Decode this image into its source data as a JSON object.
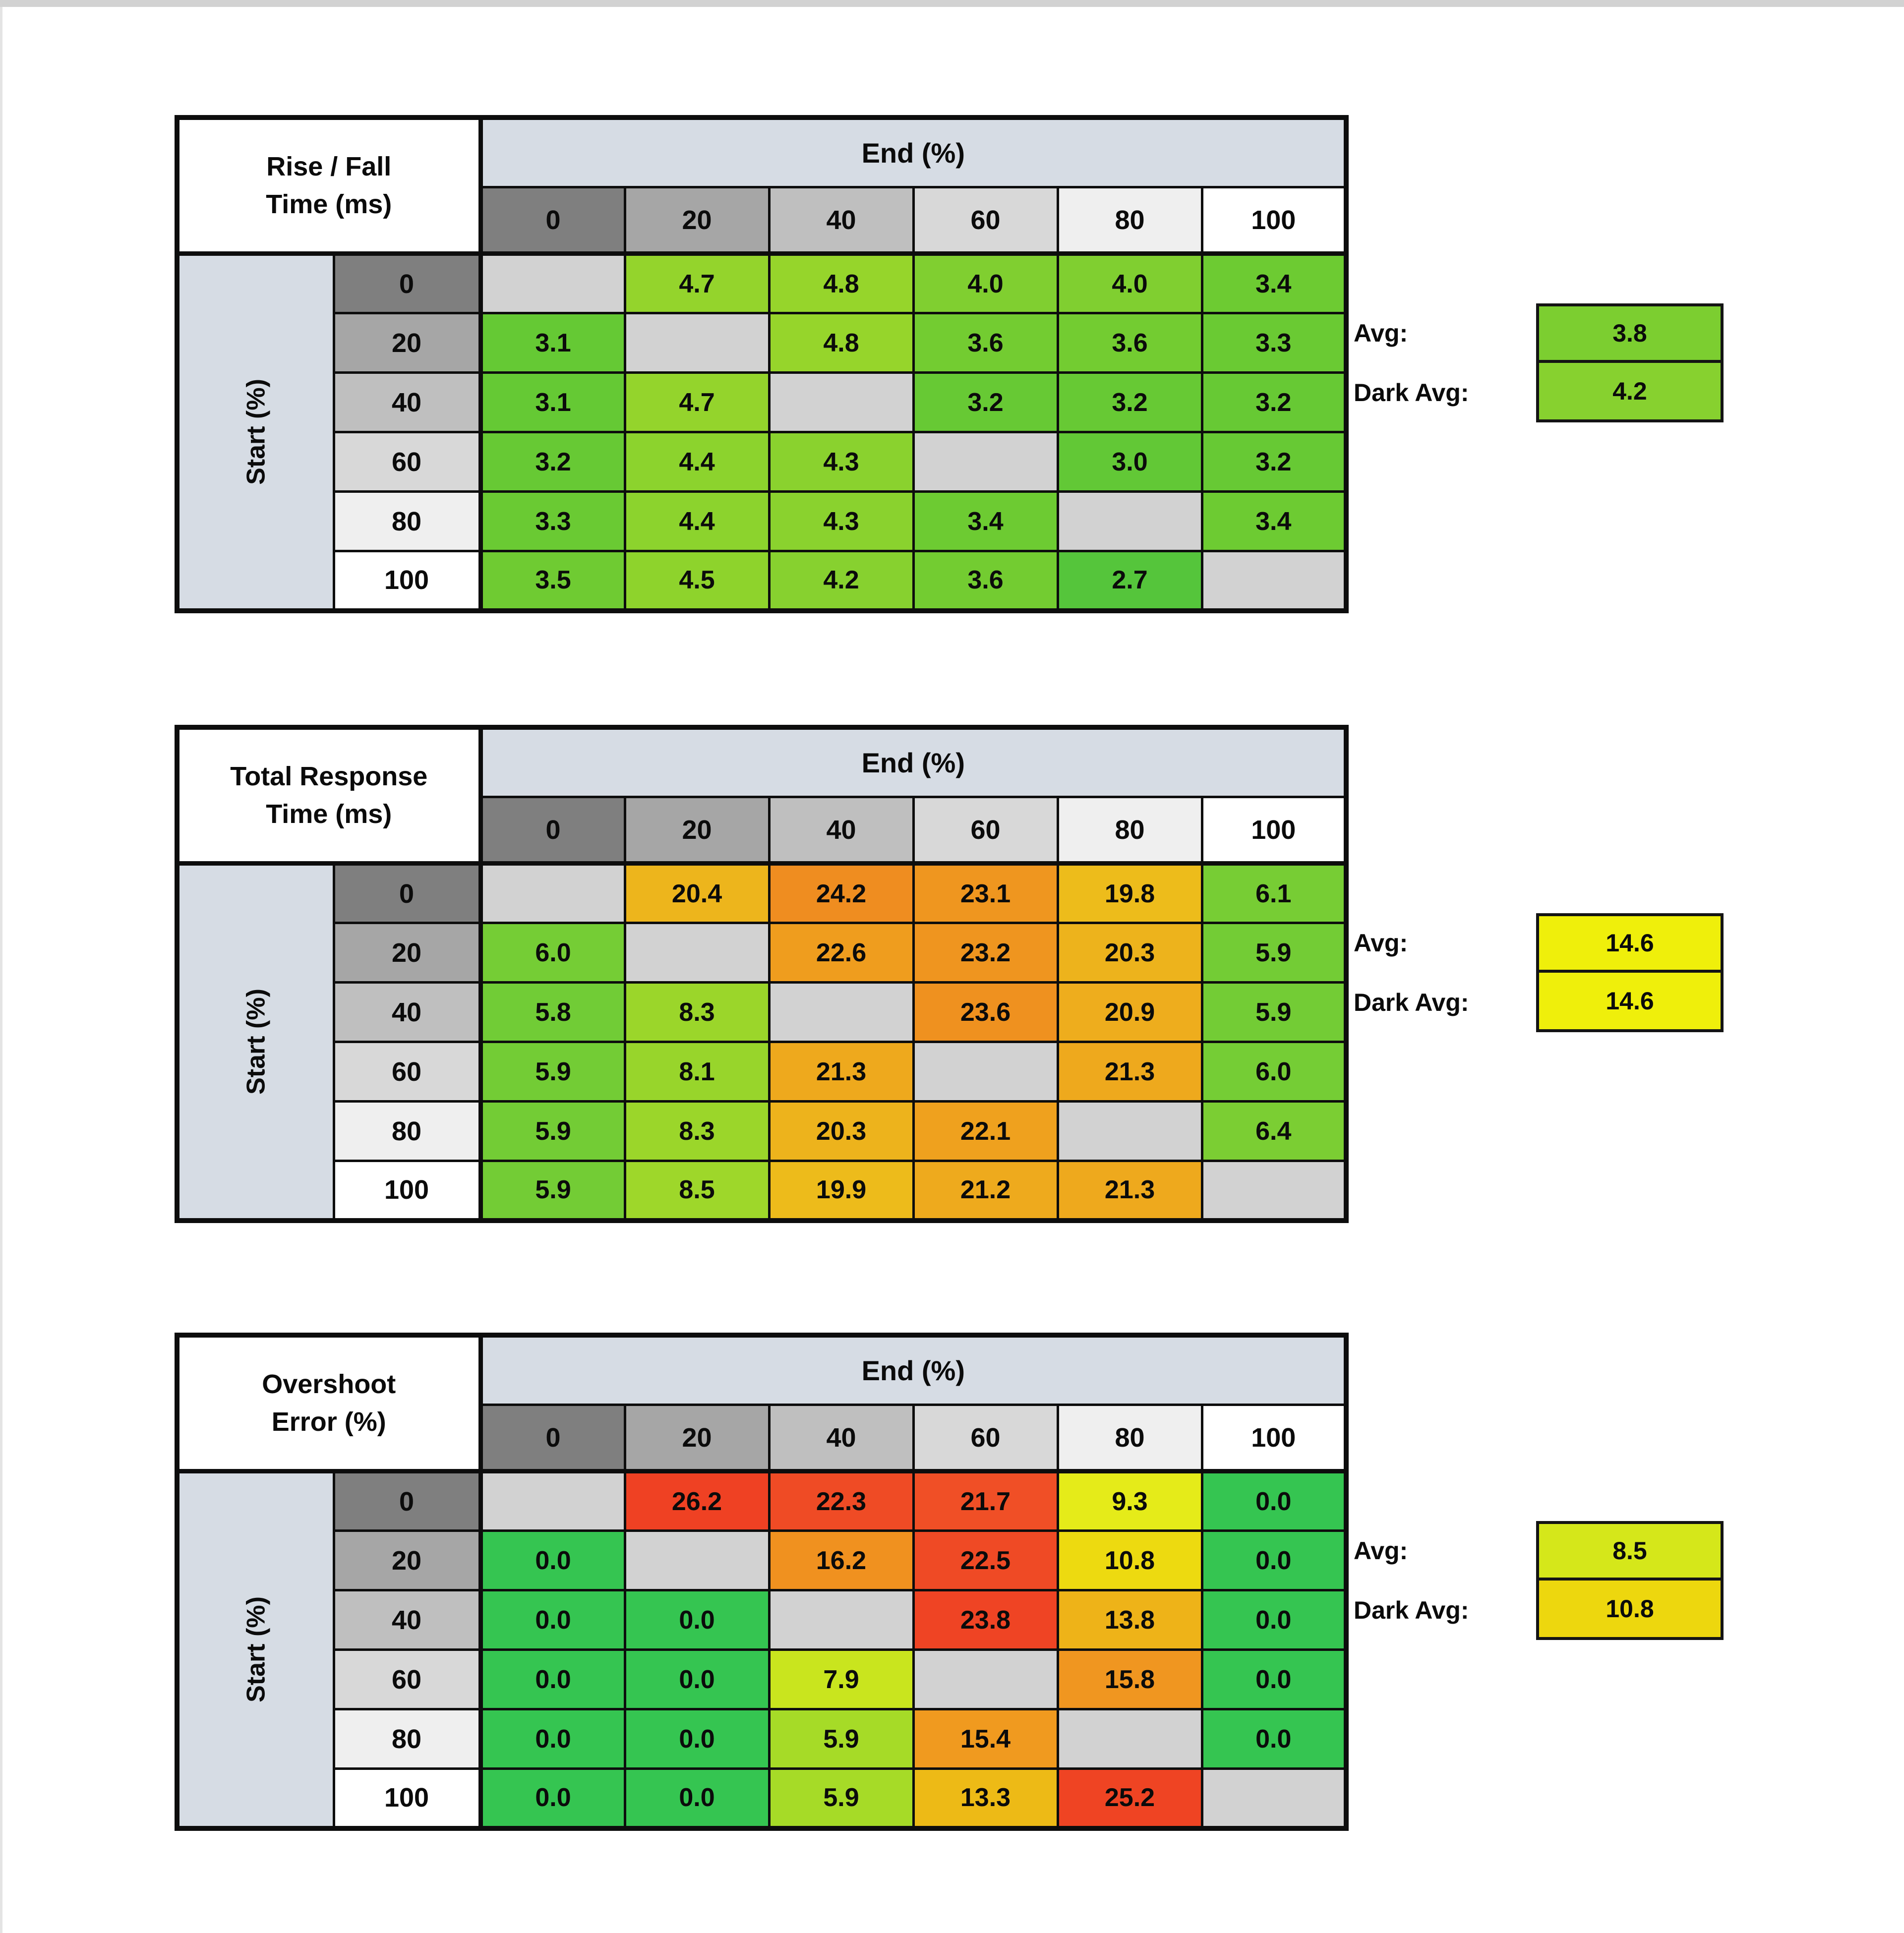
{
  "page": {
    "background": "#FFFFFF",
    "top_edge_color": "#D2D2D2",
    "left_edge_color": "#E4E4E4",
    "border_color": "#0D0D0D"
  },
  "shared": {
    "end_header": "End (%)",
    "start_label": "Start (%)",
    "col_headers": [
      "0",
      "20",
      "40",
      "60",
      "80",
      "100"
    ],
    "row_headers": [
      "0",
      "20",
      "40",
      "60",
      "80",
      "100"
    ],
    "header_grays": [
      "#7F7F7F",
      "#A6A6A6",
      "#BFBFBF",
      "#D8D8D8",
      "#EFEFEF",
      "#FFFFFF"
    ],
    "header_blue": "#D6DCE4",
    "diag_color": "#D2D2D2"
  },
  "chart_data": [
    {
      "type": "heatmap",
      "key": "rise-fall-time",
      "title_lines": [
        "Rise / Fall",
        "Time (ms)"
      ],
      "x_axis_label": "End (%)",
      "y_axis_label": "Start (%)",
      "x_categories": [
        0,
        20,
        40,
        60,
        80,
        100
      ],
      "y_categories": [
        0,
        20,
        40,
        60,
        80,
        100
      ],
      "values": [
        [
          null,
          "4.7",
          "4.8",
          "4.0",
          "4.0",
          "3.4"
        ],
        [
          "3.1",
          null,
          "4.8",
          "3.6",
          "3.6",
          "3.3"
        ],
        [
          "3.1",
          "4.7",
          null,
          "3.2",
          "3.2",
          "3.2"
        ],
        [
          "3.2",
          "4.4",
          "4.3",
          null,
          "3.0",
          "3.2"
        ],
        [
          "3.3",
          "4.4",
          "4.3",
          "3.4",
          null,
          "3.4"
        ],
        [
          "3.5",
          "4.5",
          "4.2",
          "3.6",
          "2.7",
          null
        ]
      ],
      "cell_colors": [
        [
          null,
          "#94D42C",
          "#96D52B",
          "#80CF30",
          "#80CF30",
          "#6DCB32"
        ],
        [
          "#65C934",
          null,
          "#96D52B",
          "#73CC31",
          "#73CC31",
          "#6ACA33"
        ],
        [
          "#65C934",
          "#94D42C",
          null,
          "#67C934",
          "#67C934",
          "#67C934"
        ],
        [
          "#67C934",
          "#8CD32D",
          "#8AD22E",
          null,
          "#62C836",
          "#67C934"
        ],
        [
          "#6ACA33",
          "#8CD32D",
          "#8AD22E",
          "#6DCB32",
          null,
          "#6DCB32"
        ],
        [
          "#6FCB32",
          "#8ED32C",
          "#87D12F",
          "#73CC31",
          "#55C53B",
          null
        ]
      ],
      "avg": {
        "label": "Avg:",
        "value": "3.8",
        "color": "#7CCE30"
      },
      "dark_avg": {
        "label": "Dark Avg:",
        "value": "4.2",
        "color": "#87D12F"
      }
    },
    {
      "type": "heatmap",
      "key": "total-response-time",
      "title_lines": [
        "Total Response",
        "Time (ms)"
      ],
      "x_axis_label": "End (%)",
      "y_axis_label": "Start (%)",
      "x_categories": [
        0,
        20,
        40,
        60,
        80,
        100
      ],
      "y_categories": [
        0,
        20,
        40,
        60,
        80,
        100
      ],
      "values": [
        [
          null,
          "20.4",
          "24.2",
          "23.1",
          "19.8",
          "6.1"
        ],
        [
          "6.0",
          null,
          "22.6",
          "23.2",
          "20.3",
          "5.9"
        ],
        [
          "5.8",
          "8.3",
          null,
          "23.6",
          "20.9",
          "5.9"
        ],
        [
          "5.9",
          "8.1",
          "21.3",
          null,
          "21.3",
          "6.0"
        ],
        [
          "5.9",
          "8.3",
          "20.3",
          "22.1",
          null,
          "6.4"
        ],
        [
          "5.9",
          "8.5",
          "19.9",
          "21.2",
          "21.3",
          null
        ]
      ],
      "cell_colors": [
        [
          null,
          "#EDB51C",
          "#EF8D20",
          "#EF961F",
          "#EDBC1B",
          "#77CD34"
        ],
        [
          "#75CD35",
          null,
          "#EF9D1E",
          "#EF951F",
          "#EDB31C",
          "#73CC35"
        ],
        [
          "#71CC36",
          "#9BD62A",
          null,
          "#EF911F",
          "#EEAD1D",
          "#73CC35"
        ],
        [
          "#73CC35",
          "#98D52B",
          "#EEA91D",
          null,
          "#EEA91D",
          "#75CD35"
        ],
        [
          "#73CC35",
          "#9BD62A",
          "#EDB31C",
          "#EFA11E",
          null,
          "#7BCE33"
        ],
        [
          "#73CC35",
          "#9ED72A",
          "#EDBB1B",
          "#EEAA1D",
          "#EEA91D",
          null
        ]
      ],
      "avg": {
        "label": "Avg:",
        "value": "14.6",
        "color": "#EFEF0B"
      },
      "dark_avg": {
        "label": "Dark Avg:",
        "value": "14.6",
        "color": "#EFEF0B"
      }
    },
    {
      "type": "heatmap",
      "key": "overshoot-error",
      "title_lines": [
        "Overshoot",
        "Error (%)"
      ],
      "x_axis_label": "End (%)",
      "y_axis_label": "Start (%)",
      "x_categories": [
        0,
        20,
        40,
        60,
        80,
        100
      ],
      "y_categories": [
        0,
        20,
        40,
        60,
        80,
        100
      ],
      "values": [
        [
          null,
          "26.2",
          "22.3",
          "21.7",
          "9.3",
          "0.0"
        ],
        [
          "0.0",
          null,
          "16.2",
          "22.5",
          "10.8",
          "0.0"
        ],
        [
          "0.0",
          "0.0",
          null,
          "23.8",
          "13.8",
          "0.0"
        ],
        [
          "0.0",
          "0.0",
          "7.9",
          null,
          "15.8",
          "0.0"
        ],
        [
          "0.0",
          "0.0",
          "5.9",
          "15.4",
          null,
          "0.0"
        ],
        [
          "0.0",
          "0.0",
          "5.9",
          "13.3",
          "25.2",
          null
        ]
      ],
      "cell_colors": [
        [
          null,
          "#EF4123",
          "#EF4B25",
          "#F04F26",
          "#E5EB19",
          "#35C551"
        ],
        [
          "#35C551",
          null,
          "#F0911F",
          "#EF4A25",
          "#EDDA10",
          "#35C551"
        ],
        [
          "#35C551",
          "#35C551",
          null,
          "#EF4424",
          "#EEB318",
          "#35C551"
        ],
        [
          "#35C551",
          "#35C551",
          "#C9E51E",
          null,
          "#F09620",
          "#35C551"
        ],
        [
          "#35C551",
          "#35C551",
          "#A6DB27",
          "#F09A1F",
          null,
          "#35C551"
        ],
        [
          "#35C551",
          "#35C551",
          "#A6DB27",
          "#EDBA16",
          "#EF4423",
          null
        ]
      ],
      "avg": {
        "label": "Avg:",
        "value": "8.5",
        "color": "#D5E71A"
      },
      "dark_avg": {
        "label": "Dark Avg:",
        "value": "10.8",
        "color": "#EDD70E"
      }
    }
  ]
}
